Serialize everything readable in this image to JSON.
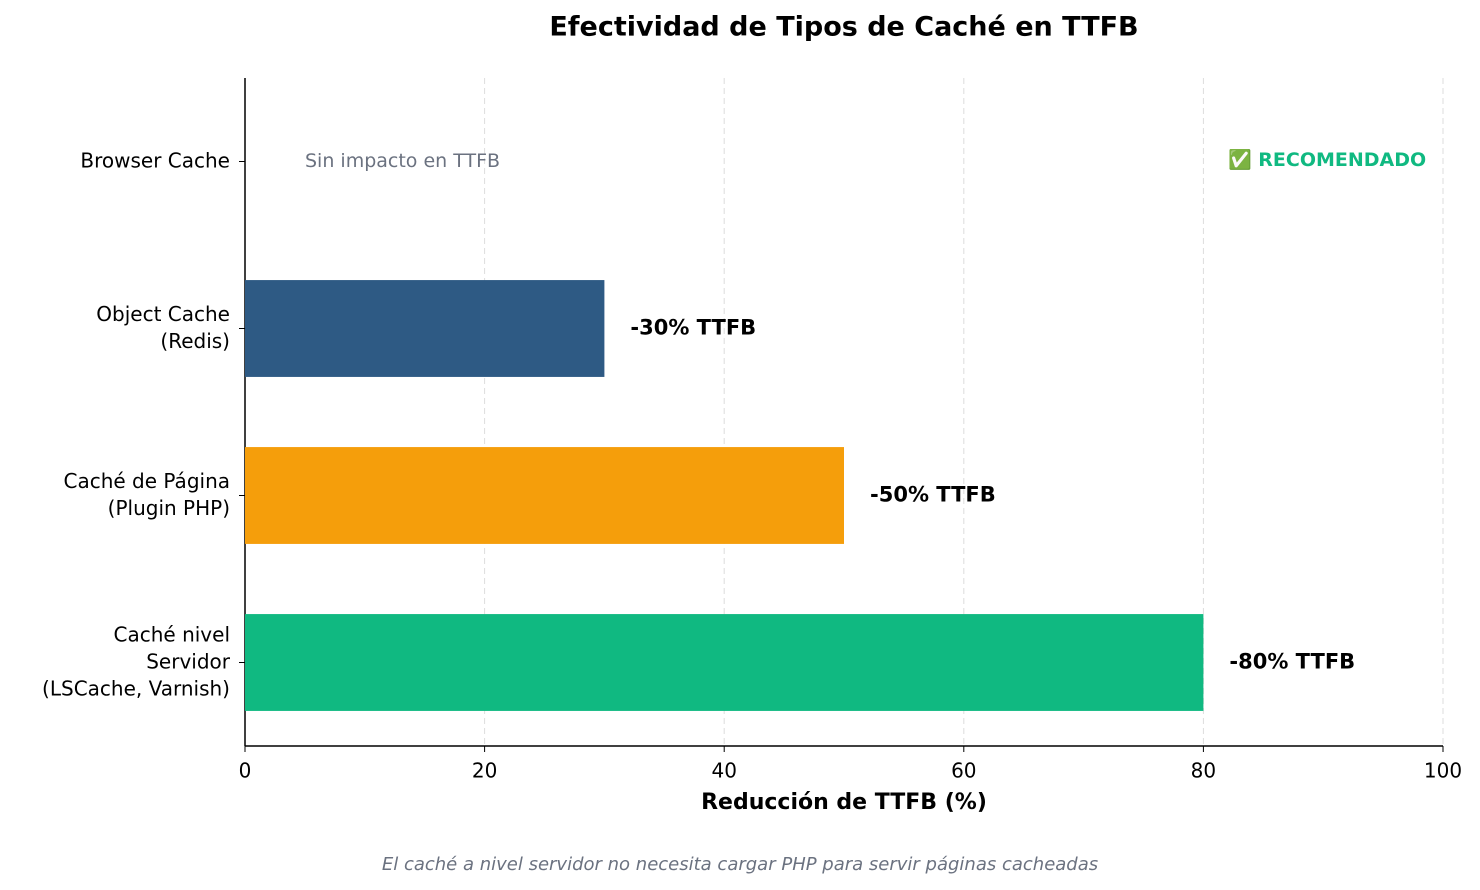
{
  "chart_data": {
    "type": "barh",
    "title": "Efectividad de Tipos de Caché en TTFB",
    "xlabel": "Reducción de TTFB (%)",
    "footnote": "El caché a nivel servidor no necesita cargar PHP para servir páginas cacheadas",
    "annotation": "✅ RECOMENDADO",
    "categories": [
      "Browser Cache",
      "Object Cache\n(Redis)",
      "Caché de Página\n(Plugin PHP)",
      "Caché nivel\nServidor\n(LSCache, Varnish)"
    ],
    "values": [
      0,
      30,
      50,
      80
    ],
    "value_labels": [
      "Sin impacto en TTFB",
      "-30% TTFB",
      "-50% TTFB",
      "-80% TTFB"
    ],
    "colors": [
      "#9ca3af",
      "#2e5a84",
      "#f59e0b",
      "#10b981"
    ],
    "xlim": [
      0,
      100
    ],
    "xticks": [
      0,
      20,
      40,
      60,
      80,
      100
    ],
    "grid": true
  }
}
